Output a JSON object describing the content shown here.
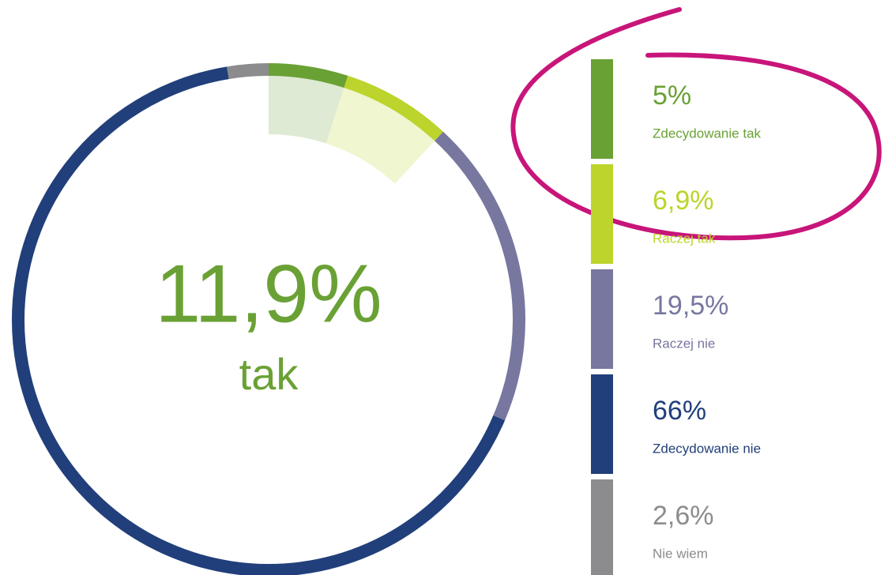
{
  "chart_data": {
    "type": "donut",
    "center_value": "11,9%",
    "center_text": "tak",
    "center_color": "#6aa135",
    "highlight_color": "#c8157a",
    "series": [
      {
        "name": "Zdecydowanie tak",
        "color": "#6aa135",
        "values": [
          5
        ],
        "value_labels": [
          "5%"
        ]
      },
      {
        "name": "Raczej tak",
        "color": "#bcd42b",
        "values": [
          6.9
        ],
        "value_labels": [
          "6,9%"
        ]
      },
      {
        "name": "Raczej nie",
        "color": "#7777a0",
        "values": [
          19.5
        ],
        "value_labels": [
          "19,5%"
        ]
      },
      {
        "name": "Zdecydowanie nie",
        "color": "#213f7a",
        "values": [
          66
        ],
        "value_labels": [
          "66%"
        ]
      },
      {
        "name": "Nie wiem",
        "color": "#8c8c8f",
        "values": [
          2.6
        ],
        "value_labels": [
          "2,6%"
        ]
      }
    ]
  }
}
